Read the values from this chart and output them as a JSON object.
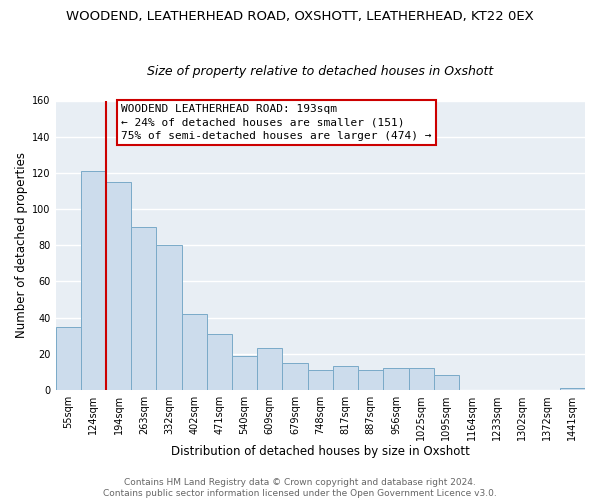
{
  "title": "WOODEND, LEATHERHEAD ROAD, OXSHOTT, LEATHERHEAD, KT22 0EX",
  "subtitle": "Size of property relative to detached houses in Oxshott",
  "xlabel": "Distribution of detached houses by size in Oxshott",
  "ylabel": "Number of detached properties",
  "bar_color": "#ccdcec",
  "bar_edge_color": "#7aaac8",
  "reference_line_color": "#cc0000",
  "bin_labels": [
    "55sqm",
    "124sqm",
    "194sqm",
    "263sqm",
    "332sqm",
    "402sqm",
    "471sqm",
    "540sqm",
    "609sqm",
    "679sqm",
    "748sqm",
    "817sqm",
    "887sqm",
    "956sqm",
    "1025sqm",
    "1095sqm",
    "1164sqm",
    "1233sqm",
    "1302sqm",
    "1372sqm",
    "1441sqm"
  ],
  "bar_heights": [
    35,
    121,
    115,
    90,
    80,
    42,
    31,
    19,
    23,
    15,
    11,
    13,
    11,
    12,
    12,
    8,
    0,
    0,
    0,
    0,
    1
  ],
  "ylim": [
    0,
    160
  ],
  "yticks": [
    0,
    20,
    40,
    60,
    80,
    100,
    120,
    140,
    160
  ],
  "annotation_line1": "WOODEND LEATHERHEAD ROAD: 193sqm",
  "annotation_line2": "← 24% of detached houses are smaller (151)",
  "annotation_line3": "75% of semi-detached houses are larger (474) →",
  "annotation_box_color": "#ffffff",
  "annotation_box_edge_color": "#cc0000",
  "footer_line1": "Contains HM Land Registry data © Crown copyright and database right 2024.",
  "footer_line2": "Contains public sector information licensed under the Open Government Licence v3.0.",
  "background_color": "#ffffff",
  "plot_bg_color": "#e8eef4",
  "grid_color": "#ffffff",
  "title_fontsize": 9.5,
  "subtitle_fontsize": 9,
  "axis_label_fontsize": 8.5,
  "tick_fontsize": 7,
  "annotation_fontsize": 8,
  "footer_fontsize": 6.5
}
